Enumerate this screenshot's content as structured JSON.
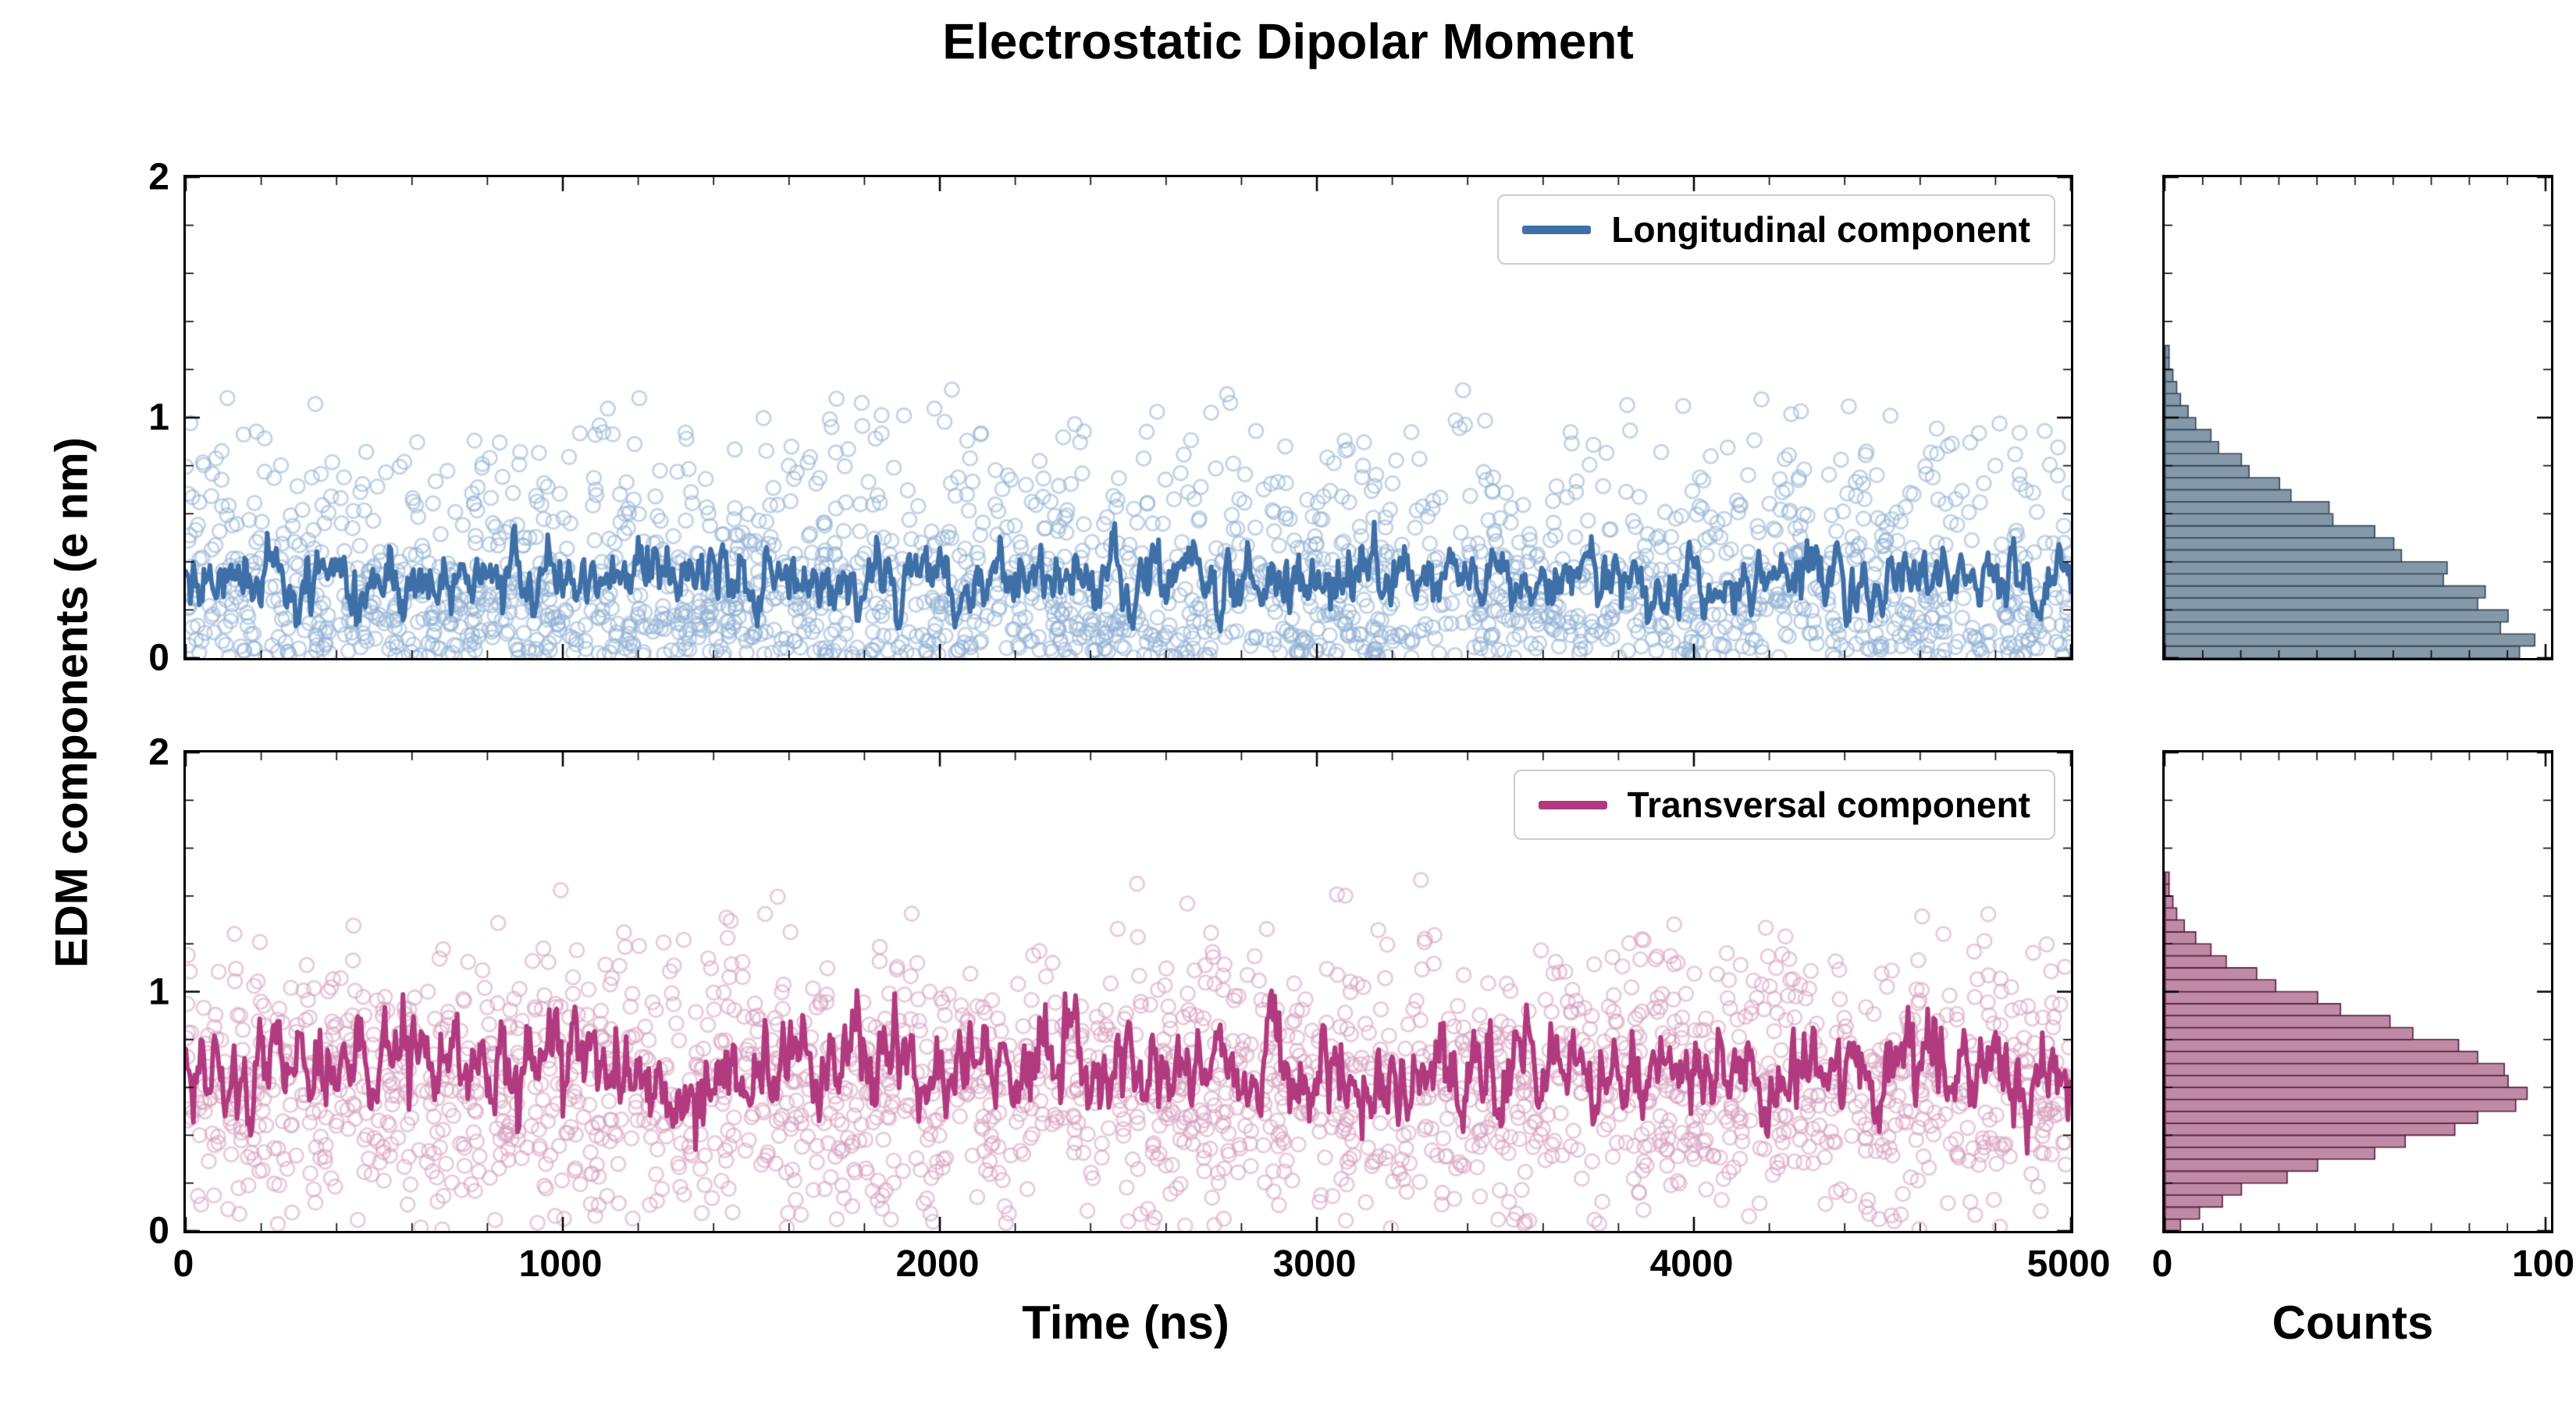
{
  "chart_data": {
    "type": "scatter",
    "title": "Electrostatic Dipolar Moment",
    "xlabel": "Time (ns)",
    "ylabel": "EDM components (e nm)",
    "hist_xlabel": "Counts",
    "xlim": [
      0,
      5000
    ],
    "ylim": [
      0,
      2
    ],
    "hist_xlim": [
      0,
      100
    ],
    "x_ticks": [
      0,
      1000,
      2000,
      3000,
      4000,
      5000
    ],
    "x_minor_step": 200,
    "y_ticks": [
      0,
      1,
      2
    ],
    "y_minor_step": 0.2,
    "hist_x_ticks": [
      0,
      100
    ],
    "hist_x_minor_step": 10,
    "hist_bin_width": 0.05,
    "legend_position": "upper right",
    "grid": false,
    "panels": [
      {
        "name": "longitudinal",
        "legend_label": "Longitudinal component",
        "line_color": "#3e6fa7",
        "scatter_color": "#8fb1d4",
        "hist_fill": "#8498a8",
        "hist_edge": "#33475c",
        "scatter_n": 2200,
        "distribution": {
          "kind": "half-normal",
          "sigma": 0.42,
          "max": 1.12
        },
        "mean_line": {
          "mean": 0.33,
          "std": 0.07
        },
        "hist_counts": [
          93,
          97,
          88,
          90,
          82,
          84,
          73,
          74,
          62,
          60,
          55,
          44,
          43,
          33,
          30,
          22,
          20,
          14,
          12,
          8,
          6,
          4,
          3,
          2,
          1,
          1,
          0,
          0,
          0,
          0,
          0,
          0,
          0,
          0,
          0,
          0,
          0,
          0,
          0,
          0
        ]
      },
      {
        "name": "transversal",
        "legend_label": "Transversal component",
        "line_color": "#b13a7f",
        "scatter_color": "#d79fc0",
        "hist_fill": "#bf8aa5",
        "hist_edge": "#57203f",
        "scatter_n": 2200,
        "distribution": {
          "kind": "normal",
          "mean": 0.62,
          "sigma": 0.28,
          "max": 1.55
        },
        "mean_line": {
          "mean": 0.66,
          "std": 0.1
        },
        "hist_counts": [
          4,
          9,
          15,
          20,
          32,
          40,
          55,
          63,
          76,
          82,
          92,
          95,
          90,
          89,
          82,
          77,
          65,
          59,
          46,
          40,
          29,
          24,
          16,
          12,
          8,
          5,
          3,
          2,
          1,
          1,
          0,
          0,
          0,
          0,
          0,
          0,
          0,
          0,
          0,
          0
        ]
      }
    ]
  }
}
